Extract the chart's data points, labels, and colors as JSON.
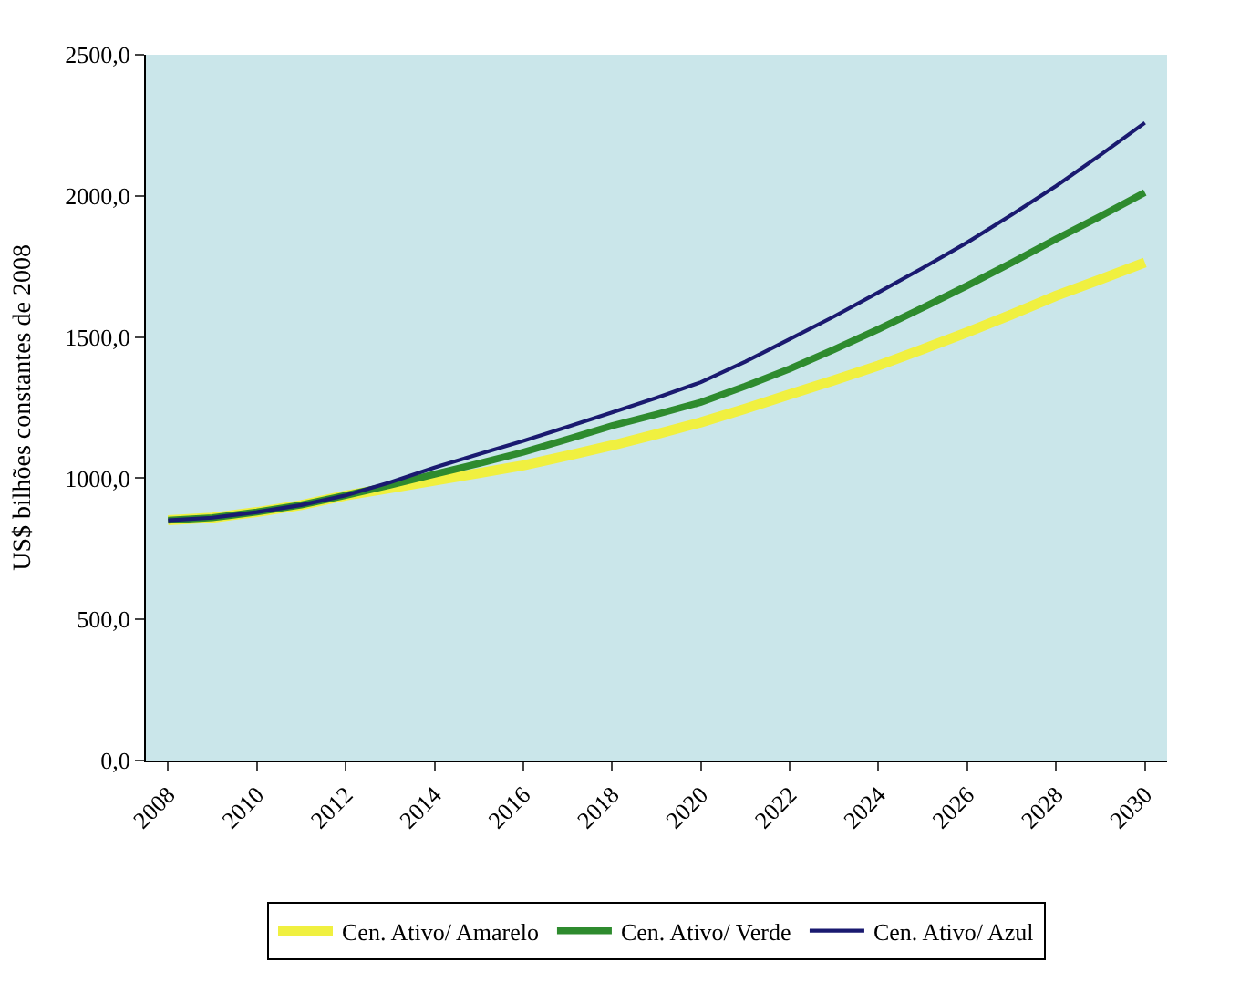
{
  "chart_data": {
    "type": "line",
    "ylabel": "US$ bilhões constantes de 2008",
    "categories": [
      "2008",
      null,
      "2010",
      null,
      "2012",
      null,
      "2014",
      null,
      "2016",
      null,
      "2018",
      null,
      "2020",
      null,
      "2022",
      null,
      "2024",
      null,
      "2026",
      null,
      "2028",
      null,
      "2030"
    ],
    "series": [
      {
        "name": "Cen. Ativo/ Amarelo",
        "color": "#f0f040",
        "values": [
          851,
          860,
          880,
          905,
          939,
          965,
          991,
          1018,
          1045,
          1080,
          1116,
          1156,
          1198,
          1246,
          1297,
          1347,
          1399,
          1457,
          1517,
          1580,
          1646,
          1704,
          1764
        ]
      },
      {
        "name": "Cen. Ativo/ Verde",
        "color": "#2e8b2e",
        "values": [
          851,
          860,
          880,
          905,
          939,
          975,
          1014,
          1052,
          1092,
          1138,
          1186,
          1226,
          1269,
          1326,
          1387,
          1456,
          1528,
          1604,
          1682,
          1763,
          1847,
          1928,
          2012
        ]
      },
      {
        "name": "Cen. Ativo/ Azul",
        "color": "#1a1a70",
        "values": [
          851,
          860,
          880,
          905,
          939,
          985,
          1038,
          1085,
          1132,
          1182,
          1233,
          1285,
          1340,
          1413,
          1493,
          1573,
          1658,
          1745,
          1835,
          1933,
          2035,
          2145,
          2259
        ]
      }
    ],
    "ylim": [
      0,
      2500
    ],
    "yticks": [
      {
        "value": 0,
        "label": "0,0"
      },
      {
        "value": 500,
        "label": "500,0"
      },
      {
        "value": 1000,
        "label": "1000,0"
      },
      {
        "value": 1500,
        "label": "1500,0"
      },
      {
        "value": 2000,
        "label": "2000,0"
      },
      {
        "value": 2500,
        "label": "2500,0"
      }
    ],
    "grid": false,
    "legend": "bottom",
    "marker": "none",
    "line_style": "solid"
  }
}
